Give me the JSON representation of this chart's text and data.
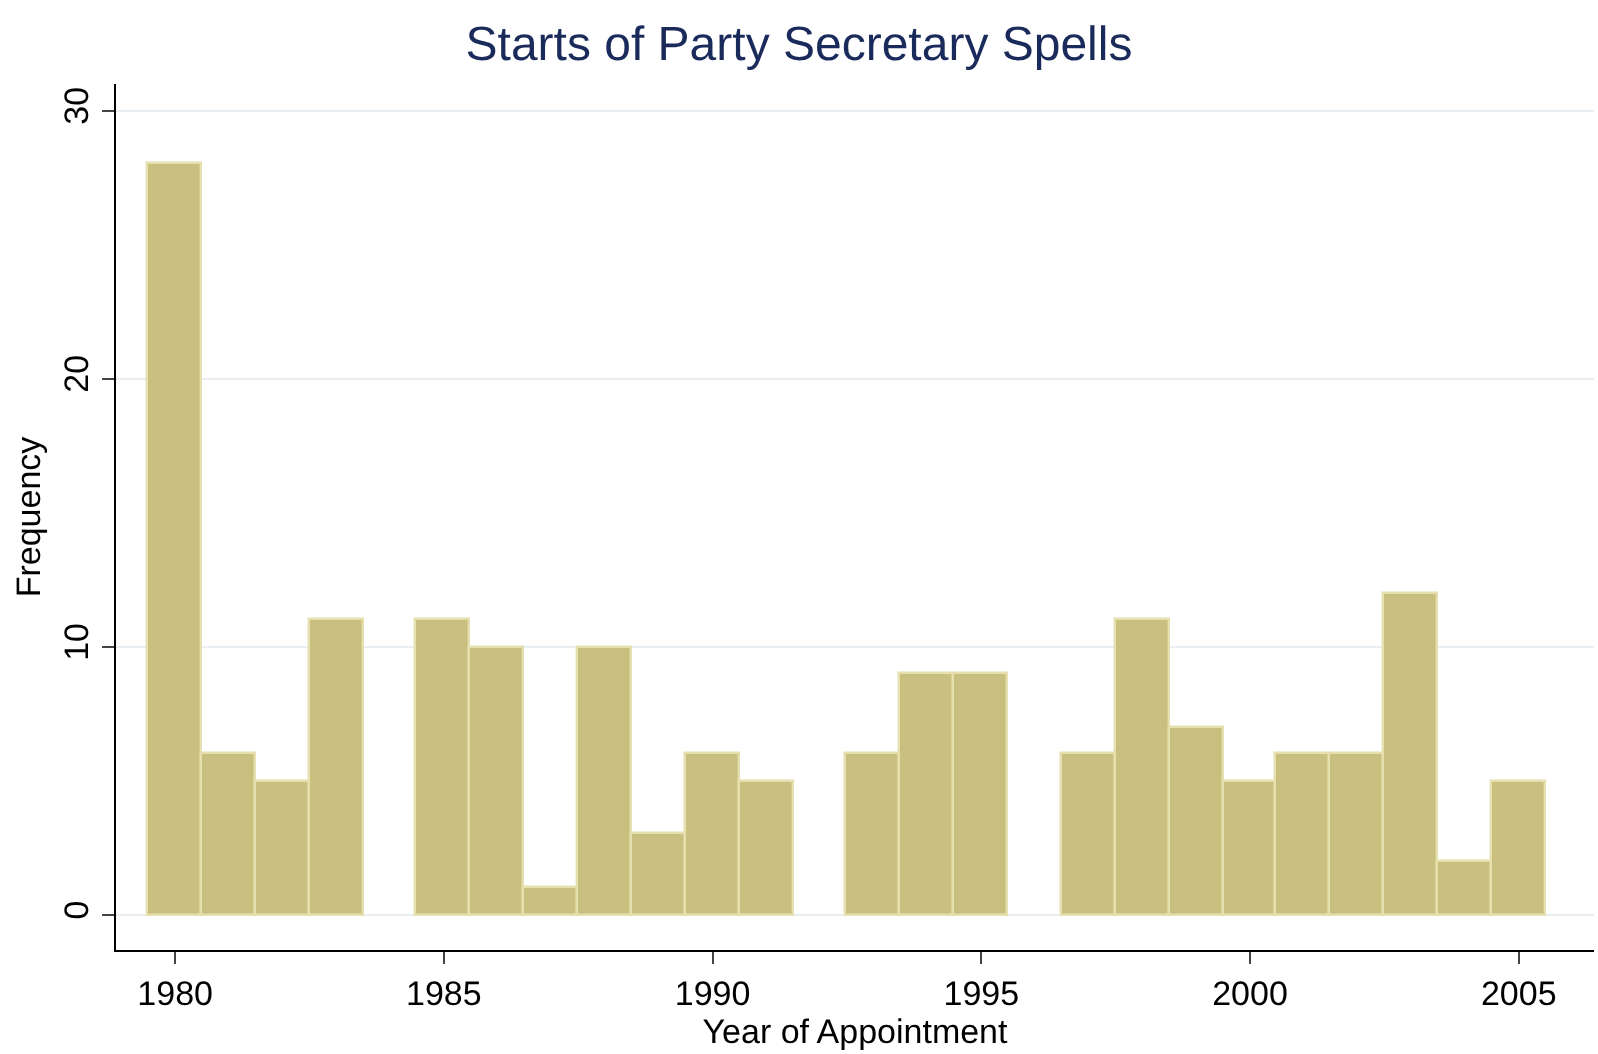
{
  "chart_data": {
    "type": "histogram",
    "title": "Starts of Party Secretary Spells",
    "xlabel": "Year of Appointment",
    "ylabel": "Frequency",
    "bins": [
      1979.5,
      1980.5,
      1981.5,
      1982.5,
      1983.5,
      1984.5,
      1985.5,
      1986.5,
      1987.5,
      1988.5,
      1989.5,
      1990.5,
      1991.5,
      1992.5,
      1993.5,
      1994.5,
      1995.5,
      1996.5,
      1997.5,
      1998.5,
      1999.5,
      2000.5,
      2001.5,
      2002.5,
      2003.5,
      2004.5,
      2005.5
    ],
    "values": [
      28,
      6,
      5,
      11,
      0,
      11,
      10,
      1,
      10,
      3,
      6,
      5,
      0,
      6,
      9,
      9,
      0,
      6,
      11,
      7,
      5,
      6,
      6,
      12,
      2,
      5
    ],
    "color": "#c9bf7f",
    "xlim": [
      1978.9,
      2006.4
    ],
    "ylim": [
      -1.3,
      31
    ],
    "xticks": [
      1980,
      1985,
      1990,
      1995,
      2000,
      2005
    ],
    "yticks": [
      0,
      10,
      20,
      30
    ],
    "grid": "y"
  }
}
